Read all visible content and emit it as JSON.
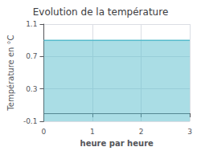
{
  "chart_data": {
    "type": "area",
    "title": "Evolution de la température",
    "xlabel": "heure par heure",
    "ylabel": "Température en °C",
    "x": [
      0,
      3
    ],
    "values": [
      0.9,
      0.9
    ],
    "color": "#55bbcc",
    "xlim": [
      0,
      3
    ],
    "xticks": [
      0,
      1,
      2,
      3
    ],
    "ylim": [
      -0.1,
      1.1
    ],
    "yticks": [
      -0.1,
      0.3,
      0.7,
      1.1
    ],
    "grid": true
  }
}
